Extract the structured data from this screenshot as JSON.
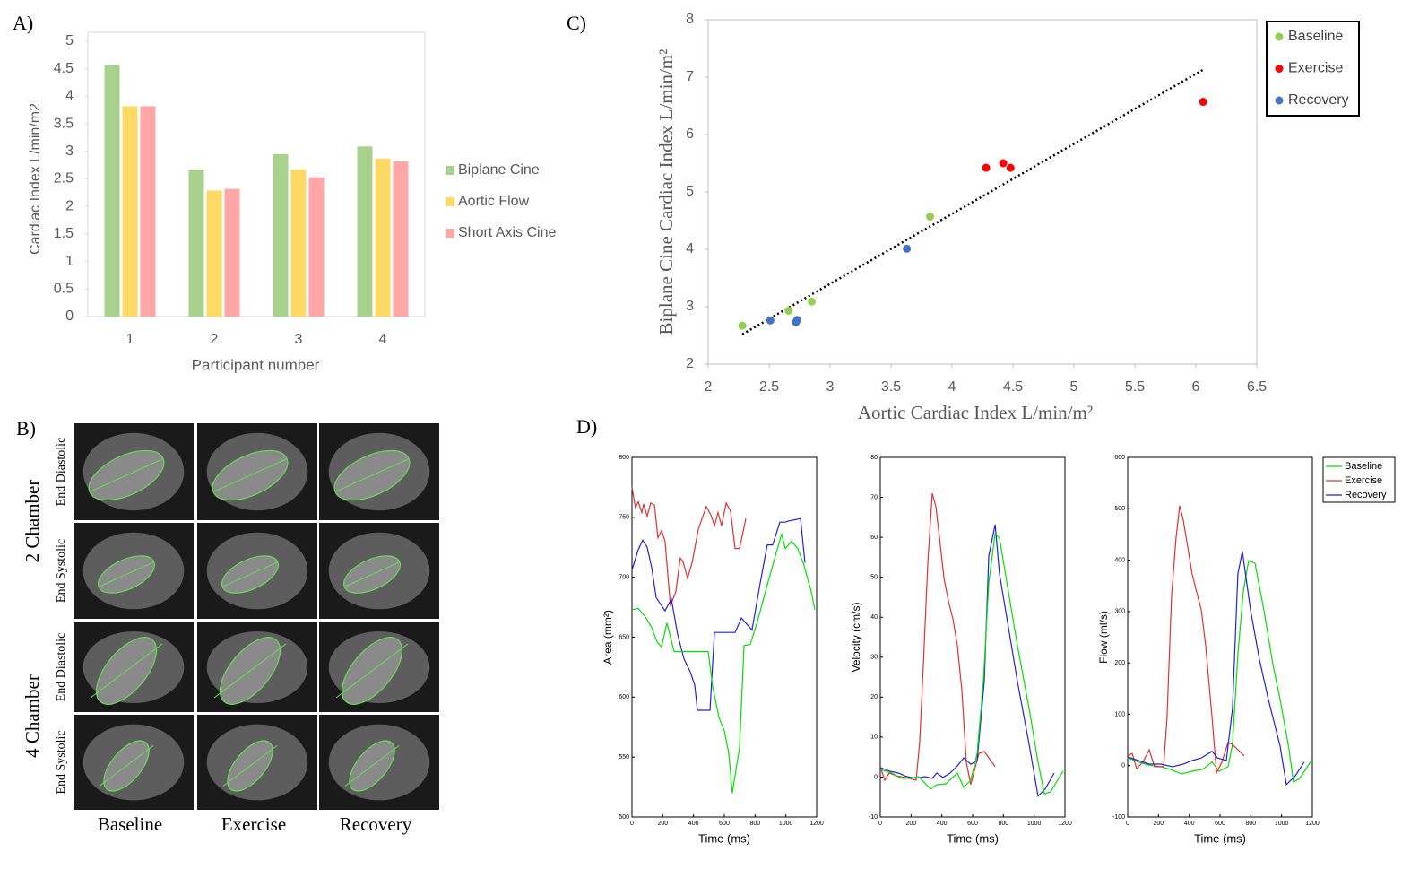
{
  "chart_data": [
    {
      "type": "bar",
      "panel": "A)",
      "xlabel": "Participant number",
      "ylabel": "Cardiac Index L/min/m2",
      "categories": [
        "1",
        "2",
        "3",
        "4"
      ],
      "ylim": [
        0,
        5
      ],
      "yticks": [
        0,
        0.5,
        1,
        1.5,
        2,
        2.5,
        3,
        3.5,
        4,
        4.5,
        5
      ],
      "legend": "right",
      "series": [
        {
          "name": "Biplane Cine",
          "color": "#a9d18e",
          "values": [
            4.57,
            2.67,
            2.95,
            3.09
          ]
        },
        {
          "name": "Aortic Flow",
          "color": "#ffd966",
          "values": [
            3.82,
            2.29,
            2.67,
            2.87
          ]
        },
        {
          "name": "Short Axis Cine",
          "color": "#ffa7a7",
          "values": [
            3.82,
            2.32,
            2.53,
            2.82
          ]
        }
      ]
    },
    {
      "type": "scatter",
      "panel": "C)",
      "xlabel": "Aortic Cardiac Index L/min/m²",
      "ylabel": "Biplane Cine Cardiac Index L/min/m²",
      "xlim": [
        2,
        6.5
      ],
      "xticks": [
        2,
        2.5,
        3,
        3.5,
        4,
        4.5,
        5,
        5.5,
        6,
        6.5
      ],
      "ylim": [
        2,
        8
      ],
      "yticks": [
        2,
        3,
        4,
        5,
        6,
        7,
        8
      ],
      "legend": "outside right",
      "series": [
        {
          "name": "Baseline",
          "color": "#92d050",
          "x": [
            2.28,
            2.66,
            2.85,
            3.82
          ],
          "values": [
            2.67,
            2.93,
            3.09,
            4.57
          ]
        },
        {
          "name": "Exercise",
          "color": "#ff0000",
          "x": [
            4.28,
            4.42,
            4.48,
            6.06
          ],
          "values": [
            5.42,
            5.5,
            5.42,
            6.57
          ]
        },
        {
          "name": "Recovery",
          "color": "#4472c4",
          "x": [
            2.51,
            2.72,
            2.73,
            3.63
          ],
          "values": [
            2.76,
            2.73,
            2.77,
            4.01
          ]
        }
      ],
      "trendline": {
        "x": [
          2.28,
          6.06
        ],
        "values": [
          2.52,
          7.13
        ]
      }
    },
    {
      "type": "line",
      "panel": "D)",
      "xlabel": "Time (ms)",
      "ylabel": "Area (mm²)",
      "xlim": [
        0,
        1200
      ],
      "xticks": [
        0,
        200,
        400,
        600,
        800,
        1000,
        1200
      ],
      "ylim": [
        500,
        800
      ],
      "yticks": [
        500,
        550,
        600,
        650,
        700,
        750,
        800
      ],
      "series": [
        {
          "color": "#e03030",
          "x": [
            0,
            23,
            41,
            64,
            76,
            99,
            122,
            146,
            169,
            192,
            215,
            250,
            285,
            314,
            332,
            361,
            390,
            431,
            483,
            513,
            536,
            559,
            582,
            612,
            641,
            670,
            699,
            740
          ],
          "values": [
            775,
            758,
            763,
            754,
            761,
            751,
            762,
            760,
            733,
            739,
            730,
            676,
            688,
            716,
            713,
            699,
            712,
            740,
            759,
            752,
            743,
            754,
            743,
            762,
            755,
            724,
            724,
            749
          ]
        },
        {
          "color": "#2020e0",
          "x": [
            0,
            41,
            70,
            99,
            128,
            157,
            215,
            256,
            297,
            338,
            379,
            408,
            425,
            507,
            536,
            600,
            670,
            711,
            780,
            833,
            879,
            914,
            961,
            996,
            1019,
            1060,
            1095,
            1124
          ],
          "values": [
            706,
            723,
            731,
            725,
            708,
            683,
            672,
            682,
            652,
            632,
            621,
            610,
            589,
            589,
            654,
            654,
            654,
            666,
            656,
            695,
            727,
            727,
            746,
            746,
            747,
            748,
            749,
            712
          ]
        },
        {
          "color": "#00e000",
          "x": [
            0,
            41,
            87,
            128,
            163,
            192,
            227,
            274,
            320,
            495,
            524,
            565,
            600,
            629,
            652,
            699,
            728,
            769,
            815,
            874,
            932,
            973,
            996,
            1037,
            1077,
            1118,
            1165,
            1188
          ],
          "values": [
            673,
            674,
            667,
            658,
            646,
            642,
            662,
            638,
            638,
            638,
            609,
            583,
            572,
            553,
            520,
            558,
            643,
            644,
            663,
            691,
            718,
            736,
            724,
            730,
            724,
            710,
            688,
            673
          ]
        }
      ]
    },
    {
      "type": "line",
      "xlabel": "Time (ms)",
      "ylabel": "Velocity (cm/s)",
      "xlim": [
        0,
        1200
      ],
      "xticks": [
        0,
        200,
        400,
        600,
        800,
        1000,
        1200
      ],
      "ylim": [
        -10,
        80
      ],
      "yticks": [
        -10,
        0,
        10,
        20,
        30,
        40,
        50,
        60,
        70,
        80
      ],
      "series": [
        {
          "color": "#e03030",
          "x": [
            0,
            29,
            58,
            105,
            163,
            233,
            256,
            280,
            309,
            338,
            361,
            385,
            414,
            443,
            472,
            501,
            530,
            559,
            588,
            641,
            676,
            746
          ],
          "values": [
            2.6,
            -0.8,
            1,
            0.3,
            -0.1,
            -0.8,
            8.6,
            28.4,
            53.5,
            71,
            67.7,
            59.8,
            49.7,
            44.1,
            39.6,
            32.9,
            21.7,
            3.7,
            -1.9,
            5.9,
            6.4,
            2.6
          ]
        },
        {
          "color": "#2020e0",
          "x": [
            0,
            58,
            117,
            175,
            233,
            291,
            338,
            367,
            408,
            454,
            501,
            542,
            588,
            629,
            676,
            705,
            746,
            775,
            833,
            891,
            967,
            1025,
            1071,
            1130
          ],
          "values": [
            2.4,
            1.5,
            1,
            0.1,
            -0.3,
            0.1,
            -0.3,
            1,
            -0.1,
            1,
            2.8,
            4.8,
            3.2,
            4.1,
            23.9,
            55.3,
            63.2,
            50.8,
            37.4,
            23.9,
            8.2,
            -4.8,
            -3,
            1
          ]
        },
        {
          "color": "#00e000",
          "x": [
            0,
            76,
            134,
            192,
            250,
            326,
            367,
            426,
            501,
            542,
            588,
            629,
            670,
            705,
            746,
            775,
            833,
            891,
            967,
            1025,
            1066,
            1107,
            1188
          ],
          "values": [
            1.9,
            1,
            -0.3,
            -0.3,
            0.1,
            -3,
            -1.9,
            -1.7,
            1,
            -2.6,
            -0.8,
            5.9,
            23.9,
            48.6,
            60.9,
            59.8,
            46.3,
            32.9,
            17.2,
            3.7,
            -4.2,
            -3.7,
            1.5
          ]
        }
      ]
    },
    {
      "type": "line",
      "xlabel": "Time (ms)",
      "ylabel": "Flow (ml/s)",
      "legend": "outside upper right",
      "xlim": [
        0,
        1200
      ],
      "xticks": [
        0,
        200,
        400,
        600,
        800,
        1000,
        1200
      ],
      "ylim": [
        -100,
        600
      ],
      "yticks": [
        -100,
        0,
        100,
        200,
        300,
        400,
        500,
        600
      ],
      "series": [
        {
          "name": "Baseline",
          "color": "#00e000",
          "x": [
            0,
            70,
            140,
            215,
            274,
            350,
            419,
            489,
            548,
            594,
            652,
            681,
            716,
            751,
            786,
            827,
            885,
            943,
            990,
            1048,
            1077,
            1118,
            1194
          ],
          "values": [
            15,
            7,
            1,
            -2,
            -7,
            -16,
            -11,
            -7,
            7,
            -11,
            -2,
            41,
            216,
            338,
            399,
            394,
            303,
            198,
            129,
            33,
            -32,
            -25,
            10
          ]
        },
        {
          "name": "Exercise",
          "color": "#e03030",
          "x": [
            0,
            29,
            58,
            99,
            140,
            175,
            233,
            256,
            285,
            314,
            338,
            361,
            390,
            419,
            448,
            478,
            507,
            548,
            577,
            612,
            652,
            681,
            757
          ],
          "values": [
            19,
            24,
            -6,
            7,
            31,
            -2,
            -2,
            94,
            329,
            443,
            506,
            478,
            425,
            373,
            338,
            303,
            233,
            94,
            -14,
            7,
            45,
            41,
            19
          ]
        },
        {
          "name": "Recovery",
          "color": "#2020e0",
          "x": [
            0,
            70,
            140,
            215,
            291,
            361,
            419,
            478,
            548,
            583,
            641,
            681,
            716,
            745,
            798,
            856,
            914,
            990,
            1031,
            1089,
            1147
          ],
          "values": [
            17,
            10,
            3,
            3,
            -2,
            3,
            10,
            15,
            28,
            15,
            10,
            111,
            373,
            417,
            303,
            207,
            129,
            38,
            -37,
            -20,
            7
          ]
        }
      ]
    }
  ],
  "panel_b": {
    "label": "B)",
    "groups": [
      {
        "label": "2 Chamber",
        "rows": [
          "End Diastolic",
          "End Systolic"
        ]
      },
      {
        "label": "4 Chamber",
        "rows": [
          "End Diastolic",
          "End Systolic"
        ]
      }
    ],
    "columns": [
      "Baseline",
      "Exercise",
      "Recovery"
    ]
  }
}
